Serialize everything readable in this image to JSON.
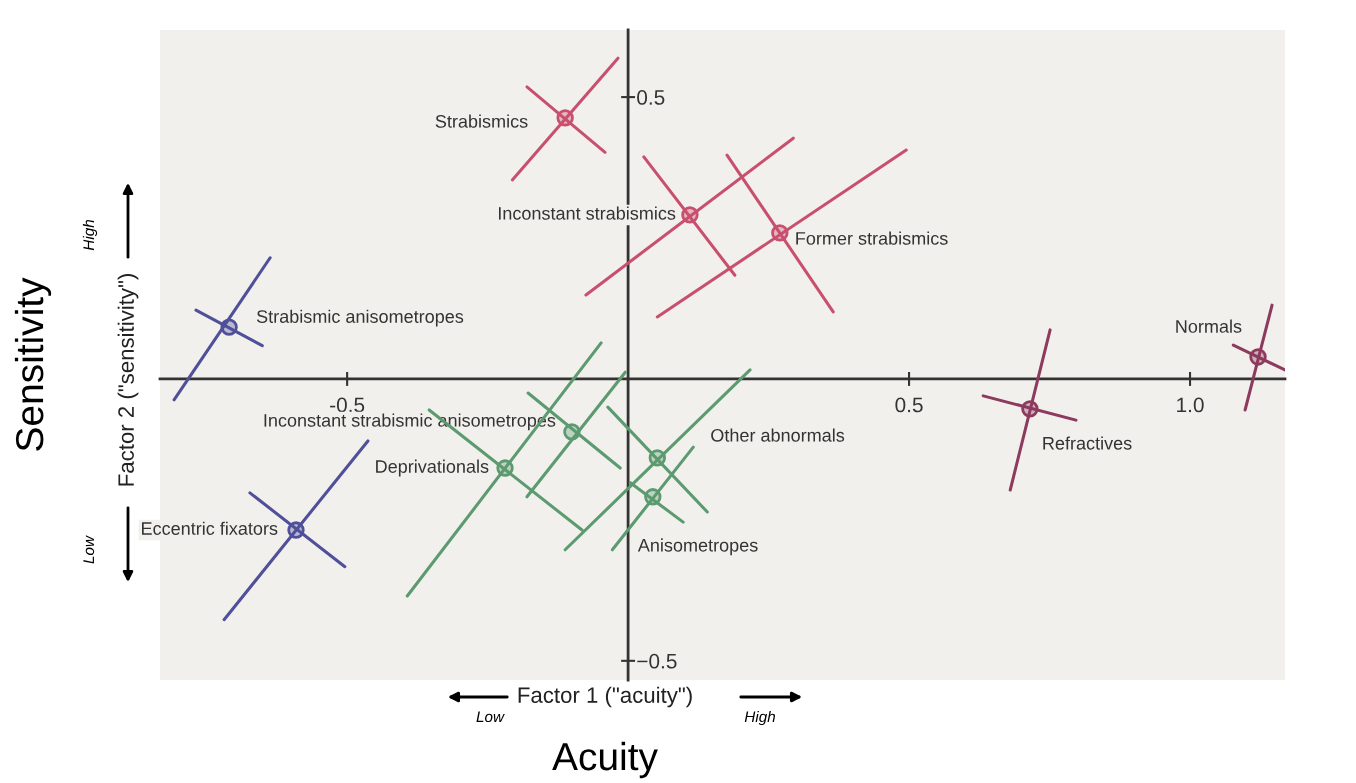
{
  "chart_data": {
    "type": "scatter",
    "xlabel": "Factor 1 (\"acuity\")",
    "ylabel": "Factor 2 (\"sensitivity\")",
    "xlim": [
      -0.833,
      1.169
    ],
    "ylim": [
      -0.534,
      0.619
    ],
    "xticks": [
      {
        "value": -0.5,
        "label": "-0.5"
      },
      0.5,
      {
        "value": 1,
        "label": "1.0"
      }
    ],
    "yticks": [
      0.5,
      {
        "value": -0.5,
        "label": "−0.5"
      }
    ],
    "grid": false,
    "legend": false,
    "series": [
      {
        "type": "line",
        "color": "#c8506e",
        "x": [
          -0.206,
          -0.018
        ],
        "values": [
          0.353,
          0.569
        ]
      },
      {
        "type": "line",
        "color": "#c8506e",
        "x": [
          -0.18,
          -0.041
        ],
        "values": [
          0.518,
          0.402
        ]
      },
      {
        "type": "line",
        "color": "#c8506e",
        "x": [
          -0.075,
          0.294
        ],
        "values": [
          0.149,
          0.427
        ]
      },
      {
        "type": "line",
        "color": "#c8506e",
        "x": [
          0.028,
          0.19
        ],
        "values": [
          0.394,
          0.184
        ]
      },
      {
        "type": "line",
        "color": "#c8506e",
        "x": [
          0.052,
          0.495
        ],
        "values": [
          0.11,
          0.406
        ]
      },
      {
        "type": "line",
        "color": "#c8506e",
        "x": [
          0.176,
          0.365
        ],
        "values": [
          0.397,
          0.119
        ]
      },
      {
        "type": "line",
        "color": "#50509a",
        "x": [
          -0.808,
          -0.637
        ],
        "values": [
          -0.037,
          0.215
        ]
      },
      {
        "type": "line",
        "color": "#50509a",
        "x": [
          -0.769,
          -0.651
        ],
        "values": [
          0.122,
          0.059
        ]
      },
      {
        "type": "line",
        "color": "#50509a",
        "x": [
          -0.719,
          -0.463
        ],
        "values": [
          -0.427,
          -0.11
        ]
      },
      {
        "type": "line",
        "color": "#50509a",
        "x": [
          -0.673,
          -0.504
        ],
        "values": [
          -0.202,
          -0.333
        ]
      },
      {
        "type": "line",
        "color": "#8c3a5e",
        "x": [
          0.68,
          0.751
        ],
        "values": [
          -0.197,
          0.087
        ]
      },
      {
        "type": "line",
        "color": "#8c3a5e",
        "x": [
          0.632,
          0.797
        ],
        "values": [
          -0.03,
          -0.073
        ]
      },
      {
        "type": "line",
        "color": "#8c3a5e",
        "x": [
          1.098,
          1.146
        ],
        "values": [
          -0.055,
          0.131
        ]
      },
      {
        "type": "line",
        "color": "#8c3a5e",
        "x": [
          1.077,
          1.169
        ],
        "values": [
          0.06,
          0.016
        ]
      },
      {
        "type": "line",
        "color": "#5c9a70",
        "x": [
          -0.393,
          -0.048
        ],
        "values": [
          -0.385,
          0.064
        ]
      },
      {
        "type": "line",
        "color": "#5c9a70",
        "x": [
          -0.354,
          -0.082
        ],
        "values": [
          -0.055,
          -0.268
        ]
      },
      {
        "type": "line",
        "color": "#5c9a70",
        "x": [
          -0.18,
          -0.005
        ],
        "values": [
          -0.209,
          0.012
        ]
      },
      {
        "type": "line",
        "color": "#5c9a70",
        "x": [
          -0.178,
          -0.014
        ],
        "values": [
          -0.025,
          -0.158
        ]
      },
      {
        "type": "line",
        "color": "#5c9a70",
        "x": [
          -0.112,
          0.217
        ],
        "values": [
          -0.303,
          0.016
        ]
      },
      {
        "type": "line",
        "color": "#5c9a70",
        "x": [
          -0.036,
          0.141
        ],
        "values": [
          -0.05,
          -0.236
        ]
      },
      {
        "type": "line",
        "color": "#5c9a70",
        "x": [
          -0.028,
          0.116
        ],
        "values": [
          -0.303,
          -0.121
        ]
      },
      {
        "type": "line",
        "color": "#5c9a70",
        "x": [
          0.004,
          0.098
        ],
        "values": [
          -0.184,
          -0.254
        ]
      },
      {
        "name": "Strabismics",
        "marker": "circle",
        "color": "#c8506e",
        "x": [
          -0.112
        ],
        "values": [
          0.463
        ]
      },
      {
        "name": "Inconstant strabismics",
        "marker": "circle",
        "color": "#c8506e",
        "x": [
          0.11
        ],
        "values": [
          0.291
        ]
      },
      {
        "name": "Former strabismics",
        "marker": "circle",
        "color": "#c8506e",
        "x": [
          0.27
        ],
        "values": [
          0.259
        ]
      },
      {
        "name": "Strabismic anisometropes",
        "marker": "circle",
        "color": "#50509a",
        "x": [
          -0.71
        ],
        "values": [
          0.092
        ]
      },
      {
        "name": "Eccentric fixators",
        "marker": "circle",
        "color": "#50509a",
        "x": [
          -0.591
        ],
        "values": [
          -0.268
        ]
      },
      {
        "name": "Refractives",
        "marker": "circle",
        "color": "#8c3a5e",
        "x": [
          0.715
        ],
        "values": [
          -0.053
        ]
      },
      {
        "name": "Normals",
        "marker": "circle",
        "color": "#8c3a5e",
        "x": [
          1.121
        ],
        "values": [
          0.039
        ]
      },
      {
        "name": "Deprivationals",
        "marker": "circle",
        "color": "#5c9a70",
        "x": [
          -0.219
        ],
        "values": [
          -0.158
        ]
      },
      {
        "name": "Inconstant strabismic anisometropes",
        "marker": "circle",
        "color": "#5c9a70",
        "x": [
          -0.1
        ],
        "values": [
          -0.094
        ]
      },
      {
        "name": "Other abnormals",
        "marker": "circle",
        "color": "#5c9a70",
        "x": [
          0.052
        ],
        "values": [
          -0.14
        ]
      },
      {
        "name": "Anisometropes",
        "marker": "circle",
        "color": "#5c9a70",
        "x": [
          0.044
        ],
        "values": [
          -0.209
        ]
      }
    ],
    "annotations": [
      "Low",
      "High",
      "High",
      "Low",
      "Acuity",
      "Sensitivity"
    ]
  }
}
